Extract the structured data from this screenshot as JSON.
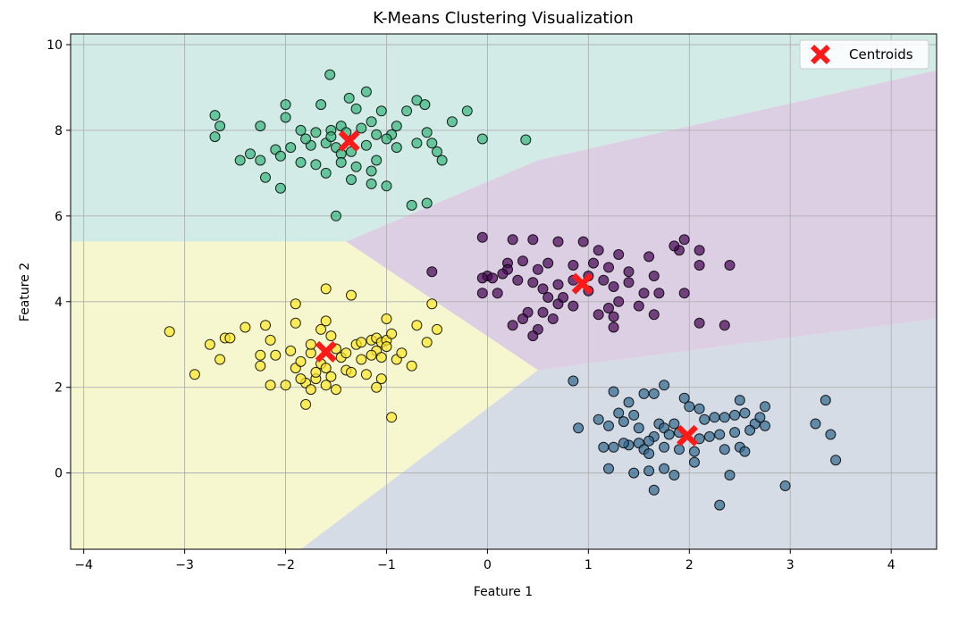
{
  "chart_data": {
    "type": "scatter",
    "title": "K-Means Clustering Visualization",
    "xlabel": "Feature 1",
    "ylabel": "Feature 2",
    "xlim": [
      -4.13,
      4.45
    ],
    "ylim": [
      -1.78,
      10.25
    ],
    "xticks": [
      -4,
      -3,
      -2,
      -1,
      0,
      1,
      2,
      3,
      4
    ],
    "yticks": [
      0,
      2,
      4,
      6,
      8,
      10
    ],
    "grid": true,
    "legend": {
      "position": "top-right",
      "entries": [
        "Centroids"
      ]
    },
    "colors": {
      "cluster_purple": "#440154",
      "cluster_blue": "#31688e",
      "cluster_green": "#35b779",
      "cluster_yellow": "#fde725",
      "region_purple": "#dccfe3",
      "region_blue": "#d6dce6",
      "region_green": "#d2ebe6",
      "region_yellow": "#f6f7cf",
      "centroid": "#ff1a1a",
      "grid": "#b0b0b0"
    },
    "regions": [
      {
        "cluster": "green",
        "polygon": [
          [
            -4.13,
            10.25
          ],
          [
            4.45,
            10.25
          ],
          [
            4.45,
            9.4
          ],
          [
            0.5,
            7.3
          ],
          [
            -1.4,
            5.4
          ],
          [
            -4.13,
            5.4
          ]
        ]
      },
      {
        "cluster": "purple",
        "polygon": [
          [
            -1.4,
            5.4
          ],
          [
            0.5,
            7.3
          ],
          [
            4.45,
            9.4
          ],
          [
            4.45,
            3.6
          ],
          [
            0.5,
            2.4
          ]
        ]
      },
      {
        "cluster": "yellow",
        "polygon": [
          [
            -4.13,
            5.4
          ],
          [
            -1.4,
            5.4
          ],
          [
            0.5,
            2.4
          ],
          [
            -1.85,
            -1.78
          ],
          [
            -4.13,
            -1.78
          ]
        ]
      },
      {
        "cluster": "blue",
        "polygon": [
          [
            0.5,
            2.4
          ],
          [
            4.45,
            3.6
          ],
          [
            4.45,
            -1.78
          ],
          [
            -1.85,
            -1.78
          ]
        ]
      }
    ],
    "centroids": [
      {
        "cluster": "purple",
        "x": 0.94,
        "y": 4.42
      },
      {
        "cluster": "blue",
        "x": 1.98,
        "y": 0.87
      },
      {
        "cluster": "green",
        "x": -1.37,
        "y": 7.75
      },
      {
        "cluster": "yellow",
        "x": -1.6,
        "y": 2.83
      }
    ],
    "series": [
      {
        "cluster": "green",
        "points": [
          [
            -1.56,
            9.3
          ],
          [
            -1.2,
            8.9
          ],
          [
            -1.37,
            8.75
          ],
          [
            -0.2,
            8.45
          ],
          [
            -0.35,
            8.2
          ],
          [
            -0.7,
            8.7
          ],
          [
            -0.62,
            8.6
          ],
          [
            -2.0,
            8.6
          ],
          [
            -1.65,
            8.6
          ],
          [
            -1.05,
            8.45
          ],
          [
            -0.9,
            8.1
          ],
          [
            -0.8,
            8.45
          ],
          [
            -1.3,
            8.5
          ],
          [
            -1.45,
            8.1
          ],
          [
            -1.15,
            8.2
          ],
          [
            -2.7,
            8.35
          ],
          [
            -2.65,
            8.1
          ],
          [
            -2.25,
            8.1
          ],
          [
            -2.0,
            8.3
          ],
          [
            -1.85,
            8.0
          ],
          [
            -1.7,
            7.95
          ],
          [
            -1.55,
            8.0
          ],
          [
            -1.25,
            8.05
          ],
          [
            -0.95,
            7.9
          ],
          [
            -0.6,
            7.95
          ],
          [
            -0.55,
            7.7
          ],
          [
            -0.7,
            7.7
          ],
          [
            -0.05,
            7.8
          ],
          [
            0.38,
            7.78
          ],
          [
            -2.7,
            7.85
          ],
          [
            -2.35,
            7.45
          ],
          [
            -2.45,
            7.3
          ],
          [
            -2.25,
            7.3
          ],
          [
            -2.1,
            7.55
          ],
          [
            -2.05,
            7.4
          ],
          [
            -1.95,
            7.6
          ],
          [
            -1.75,
            7.65
          ],
          [
            -1.6,
            7.7
          ],
          [
            -1.5,
            7.6
          ],
          [
            -1.45,
            7.45
          ],
          [
            -1.35,
            7.5
          ],
          [
            -1.2,
            7.65
          ],
          [
            -1.1,
            7.9
          ],
          [
            -1.0,
            7.8
          ],
          [
            -0.9,
            7.6
          ],
          [
            -1.85,
            7.25
          ],
          [
            -1.7,
            7.2
          ],
          [
            -1.45,
            7.25
          ],
          [
            -1.3,
            7.15
          ],
          [
            -1.1,
            7.3
          ],
          [
            -1.15,
            7.05
          ],
          [
            -0.5,
            7.5
          ],
          [
            -0.45,
            7.3
          ],
          [
            -1.6,
            7.0
          ],
          [
            -2.2,
            6.9
          ],
          [
            -2.05,
            6.65
          ],
          [
            -1.35,
            6.85
          ],
          [
            -1.15,
            6.75
          ],
          [
            -1.0,
            6.7
          ],
          [
            -0.75,
            6.25
          ],
          [
            -0.6,
            6.3
          ],
          [
            -1.5,
            6.0
          ],
          [
            -1.8,
            7.8
          ],
          [
            -1.55,
            7.85
          ],
          [
            -1.4,
            7.95
          ]
        ]
      },
      {
        "cluster": "purple",
        "points": [
          [
            -0.05,
            5.5
          ],
          [
            0.25,
            5.45
          ],
          [
            0.45,
            5.45
          ],
          [
            0.7,
            5.4
          ],
          [
            0.95,
            5.4
          ],
          [
            1.1,
            5.2
          ],
          [
            1.3,
            5.1
          ],
          [
            1.6,
            5.05
          ],
          [
            1.9,
            5.2
          ],
          [
            2.1,
            5.2
          ],
          [
            1.95,
            5.45
          ],
          [
            2.4,
            4.85
          ],
          [
            2.1,
            4.85
          ],
          [
            1.65,
            4.6
          ],
          [
            1.4,
            4.7
          ],
          [
            1.2,
            4.8
          ],
          [
            1.05,
            4.9
          ],
          [
            0.85,
            4.85
          ],
          [
            0.6,
            4.9
          ],
          [
            0.5,
            4.75
          ],
          [
            0.35,
            4.95
          ],
          [
            0.2,
            4.9
          ],
          [
            0.2,
            4.75
          ],
          [
            0.0,
            4.6
          ],
          [
            -0.05,
            4.55
          ],
          [
            0.05,
            4.55
          ],
          [
            0.15,
            4.65
          ],
          [
            0.3,
            4.5
          ],
          [
            0.45,
            4.45
          ],
          [
            0.55,
            4.3
          ],
          [
            0.7,
            4.4
          ],
          [
            0.85,
            4.5
          ],
          [
            1.0,
            4.6
          ],
          [
            1.15,
            4.5
          ],
          [
            1.25,
            4.35
          ],
          [
            1.4,
            4.45
          ],
          [
            1.55,
            4.2
          ],
          [
            1.7,
            4.2
          ],
          [
            1.95,
            4.2
          ],
          [
            1.3,
            4.0
          ],
          [
            1.2,
            3.85
          ],
          [
            1.1,
            3.7
          ],
          [
            1.25,
            3.65
          ],
          [
            1.5,
            3.9
          ],
          [
            1.65,
            3.7
          ],
          [
            0.85,
            3.9
          ],
          [
            0.7,
            3.95
          ],
          [
            0.55,
            3.75
          ],
          [
            0.4,
            3.75
          ],
          [
            0.35,
            3.6
          ],
          [
            0.25,
            3.45
          ],
          [
            0.5,
            3.35
          ],
          [
            0.45,
            3.2
          ],
          [
            0.65,
            3.6
          ],
          [
            1.25,
            3.4
          ],
          [
            2.1,
            3.5
          ],
          [
            2.35,
            3.45
          ],
          [
            -0.55,
            4.7
          ],
          [
            0.1,
            4.2
          ],
          [
            -0.05,
            4.2
          ],
          [
            0.75,
            4.1
          ],
          [
            1.0,
            4.25
          ],
          [
            0.6,
            4.1
          ],
          [
            1.85,
            5.3
          ]
        ]
      },
      {
        "cluster": "blue",
        "points": [
          [
            0.85,
            2.15
          ],
          [
            1.25,
            1.9
          ],
          [
            1.55,
            1.85
          ],
          [
            1.65,
            1.85
          ],
          [
            1.75,
            2.05
          ],
          [
            1.95,
            1.75
          ],
          [
            2.0,
            1.55
          ],
          [
            2.1,
            1.5
          ],
          [
            2.5,
            1.7
          ],
          [
            2.75,
            1.55
          ],
          [
            3.35,
            1.7
          ],
          [
            1.4,
            1.65
          ],
          [
            1.45,
            1.35
          ],
          [
            1.3,
            1.4
          ],
          [
            1.1,
            1.25
          ],
          [
            0.9,
            1.05
          ],
          [
            1.2,
            1.1
          ],
          [
            1.35,
            1.2
          ],
          [
            1.5,
            1.05
          ],
          [
            1.7,
            1.15
          ],
          [
            1.75,
            1.05
          ],
          [
            1.85,
            1.15
          ],
          [
            2.15,
            1.25
          ],
          [
            2.25,
            1.3
          ],
          [
            2.35,
            1.3
          ],
          [
            2.45,
            1.35
          ],
          [
            2.55,
            1.4
          ],
          [
            2.65,
            1.15
          ],
          [
            2.7,
            1.3
          ],
          [
            2.75,
            1.1
          ],
          [
            2.6,
            1.0
          ],
          [
            2.45,
            0.95
          ],
          [
            2.3,
            0.9
          ],
          [
            2.2,
            0.85
          ],
          [
            2.1,
            0.8
          ],
          [
            1.9,
            0.95
          ],
          [
            1.8,
            0.9
          ],
          [
            1.65,
            0.85
          ],
          [
            1.6,
            0.75
          ],
          [
            1.5,
            0.7
          ],
          [
            1.4,
            0.65
          ],
          [
            1.25,
            0.6
          ],
          [
            1.15,
            0.6
          ],
          [
            1.35,
            0.7
          ],
          [
            1.55,
            0.55
          ],
          [
            1.75,
            0.6
          ],
          [
            1.9,
            0.55
          ],
          [
            2.05,
            0.5
          ],
          [
            2.35,
            0.55
          ],
          [
            2.5,
            0.6
          ],
          [
            2.55,
            0.5
          ],
          [
            3.25,
            1.15
          ],
          [
            3.4,
            0.9
          ],
          [
            3.45,
            0.3
          ],
          [
            1.2,
            0.1
          ],
          [
            1.45,
            0.0
          ],
          [
            1.6,
            0.05
          ],
          [
            1.75,
            0.1
          ],
          [
            1.85,
            -0.05
          ],
          [
            2.05,
            0.25
          ],
          [
            2.4,
            -0.05
          ],
          [
            2.95,
            -0.3
          ],
          [
            1.65,
            -0.4
          ],
          [
            2.3,
            -0.75
          ],
          [
            1.6,
            0.45
          ]
        ]
      },
      {
        "cluster": "yellow",
        "points": [
          [
            -3.15,
            3.3
          ],
          [
            -2.75,
            3.0
          ],
          [
            -2.6,
            3.15
          ],
          [
            -2.55,
            3.15
          ],
          [
            -2.4,
            3.4
          ],
          [
            -2.2,
            3.45
          ],
          [
            -2.15,
            3.1
          ],
          [
            -2.25,
            2.75
          ],
          [
            -2.25,
            2.5
          ],
          [
            -2.1,
            2.75
          ],
          [
            -2.0,
            2.05
          ],
          [
            -2.15,
            2.05
          ],
          [
            -2.65,
            2.65
          ],
          [
            -2.9,
            2.3
          ],
          [
            -1.95,
            2.85
          ],
          [
            -1.9,
            2.45
          ],
          [
            -1.85,
            2.6
          ],
          [
            -1.75,
            2.8
          ],
          [
            -1.75,
            3.0
          ],
          [
            -1.65,
            3.35
          ],
          [
            -1.6,
            3.55
          ],
          [
            -1.55,
            3.2
          ],
          [
            -1.5,
            2.9
          ],
          [
            -1.65,
            2.55
          ],
          [
            -1.7,
            2.2
          ],
          [
            -1.8,
            2.1
          ],
          [
            -1.75,
            1.95
          ],
          [
            -1.8,
            1.6
          ],
          [
            -1.5,
            1.95
          ],
          [
            -1.9,
            3.5
          ],
          [
            -1.9,
            3.95
          ],
          [
            -1.6,
            4.3
          ],
          [
            -1.35,
            4.15
          ],
          [
            -1.3,
            3.0
          ],
          [
            -1.25,
            3.05
          ],
          [
            -1.15,
            3.1
          ],
          [
            -1.1,
            3.15
          ],
          [
            -1.05,
            3.05
          ],
          [
            -1.0,
            3.1
          ],
          [
            -0.95,
            3.25
          ],
          [
            -1.0,
            2.95
          ],
          [
            -1.1,
            2.85
          ],
          [
            -1.15,
            2.75
          ],
          [
            -1.25,
            2.65
          ],
          [
            -1.4,
            2.4
          ],
          [
            -1.35,
            2.35
          ],
          [
            -1.2,
            2.3
          ],
          [
            -1.05,
            2.2
          ],
          [
            -1.1,
            2.0
          ],
          [
            -1.0,
            3.6
          ],
          [
            -0.7,
            3.45
          ],
          [
            -0.5,
            3.35
          ],
          [
            -0.6,
            3.05
          ],
          [
            -0.75,
            2.5
          ],
          [
            -0.9,
            2.65
          ],
          [
            -0.95,
            1.3
          ],
          [
            -0.85,
            2.8
          ],
          [
            -0.55,
            3.95
          ],
          [
            -1.6,
            2.05
          ],
          [
            -1.45,
            2.7
          ],
          [
            -1.4,
            2.8
          ],
          [
            -1.05,
            2.7
          ],
          [
            -1.7,
            2.35
          ],
          [
            -1.85,
            2.2
          ],
          [
            -1.6,
            2.45
          ],
          [
            -1.55,
            2.25
          ]
        ]
      }
    ]
  }
}
